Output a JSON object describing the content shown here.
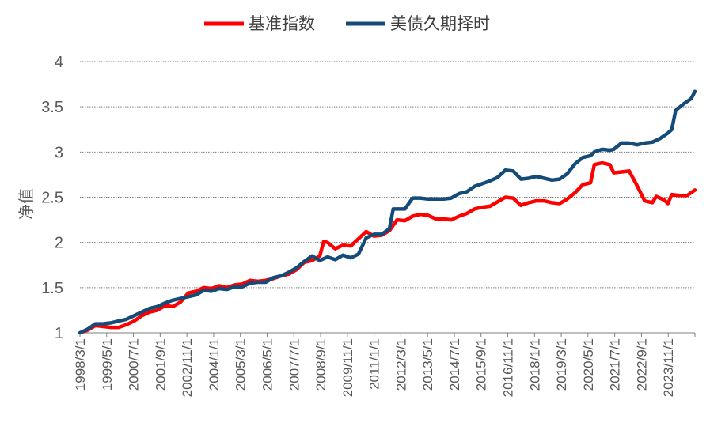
{
  "chart_data": {
    "type": "line",
    "title": "",
    "xlabel": "",
    "ylabel": "净值",
    "ylim": [
      1,
      4
    ],
    "yticks": [
      "1",
      "1.5",
      "2",
      "2.5",
      "3",
      "3.5",
      "4"
    ],
    "grid": "horizontal-dotted",
    "legend_position": "top-center",
    "x_tick_labels": [
      "1998/3/1",
      "1999/5/1",
      "2000/7/1",
      "2001/9/1",
      "2002/11/1",
      "2004/1/1",
      "2005/3/1",
      "2006/5/1",
      "2007/7/1",
      "2008/9/1",
      "2009/11/1",
      "2011/1/1",
      "2012/3/1",
      "2013/5/1",
      "2014/7/1",
      "2015/9/1",
      "2016/11/1",
      "2018/1/1",
      "2019/3/1",
      "2020/5/1",
      "2021/7/1",
      "2022/9/1",
      "2023/11/1"
    ],
    "series": [
      {
        "name": "基准指数",
        "color": "#ff0000",
        "points": [
          [
            "1998/3",
            1.0
          ],
          [
            "1998/7",
            1.03
          ],
          [
            "1998/11",
            1.08
          ],
          [
            "1999/3",
            1.07
          ],
          [
            "1999/7",
            1.06
          ],
          [
            "1999/11",
            1.06
          ],
          [
            "2000/3",
            1.09
          ],
          [
            "2000/7",
            1.13
          ],
          [
            "2000/11",
            1.19
          ],
          [
            "2001/3",
            1.23
          ],
          [
            "2001/7",
            1.25
          ],
          [
            "2001/11",
            1.3
          ],
          [
            "2002/3",
            1.29
          ],
          [
            "2002/7",
            1.34
          ],
          [
            "2002/11",
            1.44
          ],
          [
            "2003/3",
            1.46
          ],
          [
            "2003/7",
            1.5
          ],
          [
            "2003/11",
            1.49
          ],
          [
            "2004/3",
            1.52
          ],
          [
            "2004/7",
            1.5
          ],
          [
            "2004/11",
            1.53
          ],
          [
            "2005/3",
            1.54
          ],
          [
            "2005/7",
            1.58
          ],
          [
            "2005/11",
            1.57
          ],
          [
            "2006/3",
            1.58
          ],
          [
            "2006/7",
            1.6
          ],
          [
            "2006/11",
            1.63
          ],
          [
            "2007/3",
            1.65
          ],
          [
            "2007/7",
            1.7
          ],
          [
            "2007/11",
            1.78
          ],
          [
            "2008/3",
            1.8
          ],
          [
            "2008/7",
            1.85
          ],
          [
            "2008/9",
            2.01
          ],
          [
            "2008/11",
            2.0
          ],
          [
            "2009/3",
            1.93
          ],
          [
            "2009/7",
            1.97
          ],
          [
            "2009/11",
            1.96
          ],
          [
            "2010/3",
            2.04
          ],
          [
            "2010/7",
            2.12
          ],
          [
            "2010/11",
            2.07
          ],
          [
            "2011/3",
            2.08
          ],
          [
            "2011/7",
            2.13
          ],
          [
            "2011/11",
            2.25
          ],
          [
            "2012/3",
            2.24
          ],
          [
            "2012/7",
            2.29
          ],
          [
            "2012/11",
            2.31
          ],
          [
            "2013/3",
            2.3
          ],
          [
            "2013/7",
            2.26
          ],
          [
            "2013/11",
            2.26
          ],
          [
            "2014/3",
            2.25
          ],
          [
            "2014/7",
            2.29
          ],
          [
            "2014/11",
            2.32
          ],
          [
            "2015/3",
            2.37
          ],
          [
            "2015/7",
            2.39
          ],
          [
            "2015/11",
            2.4
          ],
          [
            "2016/3",
            2.45
          ],
          [
            "2016/7",
            2.5
          ],
          [
            "2016/11",
            2.49
          ],
          [
            "2017/3",
            2.41
          ],
          [
            "2017/7",
            2.44
          ],
          [
            "2017/11",
            2.46
          ],
          [
            "2018/3",
            2.46
          ],
          [
            "2018/7",
            2.44
          ],
          [
            "2018/11",
            2.43
          ],
          [
            "2019/3",
            2.48
          ],
          [
            "2019/7",
            2.55
          ],
          [
            "2019/11",
            2.64
          ],
          [
            "2020/3",
            2.66
          ],
          [
            "2020/5",
            2.86
          ],
          [
            "2020/9",
            2.88
          ],
          [
            "2021/1",
            2.86
          ],
          [
            "2021/3",
            2.77
          ],
          [
            "2021/7",
            2.78
          ],
          [
            "2021/11",
            2.79
          ],
          [
            "2022/3",
            2.63
          ],
          [
            "2022/7",
            2.46
          ],
          [
            "2022/11",
            2.44
          ],
          [
            "2023/1",
            2.51
          ],
          [
            "2023/5",
            2.47
          ],
          [
            "2023/7",
            2.43
          ],
          [
            "2023/9",
            2.53
          ],
          [
            "2024/1",
            2.52
          ],
          [
            "2024/5",
            2.52
          ],
          [
            "2024/9",
            2.58
          ]
        ]
      },
      {
        "name": "美债久期择时",
        "color": "#154b78",
        "points": [
          [
            "1998/3",
            1.0
          ],
          [
            "1998/7",
            1.04
          ],
          [
            "1998/11",
            1.1
          ],
          [
            "1999/3",
            1.1
          ],
          [
            "1999/7",
            1.11
          ],
          [
            "1999/11",
            1.13
          ],
          [
            "2000/3",
            1.15
          ],
          [
            "2000/7",
            1.19
          ],
          [
            "2000/11",
            1.23
          ],
          [
            "2001/3",
            1.27
          ],
          [
            "2001/7",
            1.29
          ],
          [
            "2001/11",
            1.33
          ],
          [
            "2002/3",
            1.36
          ],
          [
            "2002/7",
            1.38
          ],
          [
            "2002/11",
            1.4
          ],
          [
            "2003/3",
            1.42
          ],
          [
            "2003/7",
            1.47
          ],
          [
            "2003/11",
            1.46
          ],
          [
            "2004/3",
            1.49
          ],
          [
            "2004/7",
            1.48
          ],
          [
            "2004/11",
            1.51
          ],
          [
            "2005/3",
            1.51
          ],
          [
            "2005/7",
            1.55
          ],
          [
            "2005/11",
            1.56
          ],
          [
            "2006/3",
            1.56
          ],
          [
            "2006/7",
            1.61
          ],
          [
            "2006/11",
            1.63
          ],
          [
            "2007/3",
            1.67
          ],
          [
            "2007/7",
            1.72
          ],
          [
            "2007/11",
            1.79
          ],
          [
            "2008/3",
            1.85
          ],
          [
            "2008/7",
            1.8
          ],
          [
            "2008/11",
            1.84
          ],
          [
            "2009/3",
            1.81
          ],
          [
            "2009/7",
            1.86
          ],
          [
            "2009/11",
            1.83
          ],
          [
            "2010/3",
            1.87
          ],
          [
            "2010/7",
            2.05
          ],
          [
            "2010/11",
            2.09
          ],
          [
            "2011/3",
            2.09
          ],
          [
            "2011/7",
            2.15
          ],
          [
            "2011/9",
            2.37
          ],
          [
            "2012/3",
            2.37
          ],
          [
            "2012/7",
            2.49
          ],
          [
            "2012/11",
            2.49
          ],
          [
            "2013/3",
            2.48
          ],
          [
            "2013/7",
            2.48
          ],
          [
            "2013/11",
            2.48
          ],
          [
            "2014/3",
            2.49
          ],
          [
            "2014/7",
            2.54
          ],
          [
            "2014/11",
            2.56
          ],
          [
            "2015/3",
            2.62
          ],
          [
            "2015/7",
            2.65
          ],
          [
            "2015/11",
            2.68
          ],
          [
            "2016/3",
            2.72
          ],
          [
            "2016/7",
            2.8
          ],
          [
            "2016/11",
            2.79
          ],
          [
            "2017/3",
            2.7
          ],
          [
            "2017/7",
            2.71
          ],
          [
            "2017/11",
            2.73
          ],
          [
            "2018/3",
            2.71
          ],
          [
            "2018/7",
            2.69
          ],
          [
            "2018/11",
            2.7
          ],
          [
            "2019/3",
            2.76
          ],
          [
            "2019/7",
            2.87
          ],
          [
            "2019/11",
            2.94
          ],
          [
            "2020/3",
            2.96
          ],
          [
            "2020/5",
            3.0
          ],
          [
            "2020/9",
            3.03
          ],
          [
            "2021/1",
            3.02
          ],
          [
            "2021/3",
            3.03
          ],
          [
            "2021/7",
            3.1
          ],
          [
            "2021/11",
            3.1
          ],
          [
            "2022/3",
            3.08
          ],
          [
            "2022/7",
            3.1
          ],
          [
            "2022/11",
            3.11
          ],
          [
            "2023/3",
            3.15
          ],
          [
            "2023/7",
            3.21
          ],
          [
            "2023/9",
            3.25
          ],
          [
            "2023/11",
            3.46
          ],
          [
            "2024/3",
            3.53
          ],
          [
            "2024/7",
            3.59
          ],
          [
            "2024/9",
            3.67
          ]
        ]
      }
    ]
  }
}
